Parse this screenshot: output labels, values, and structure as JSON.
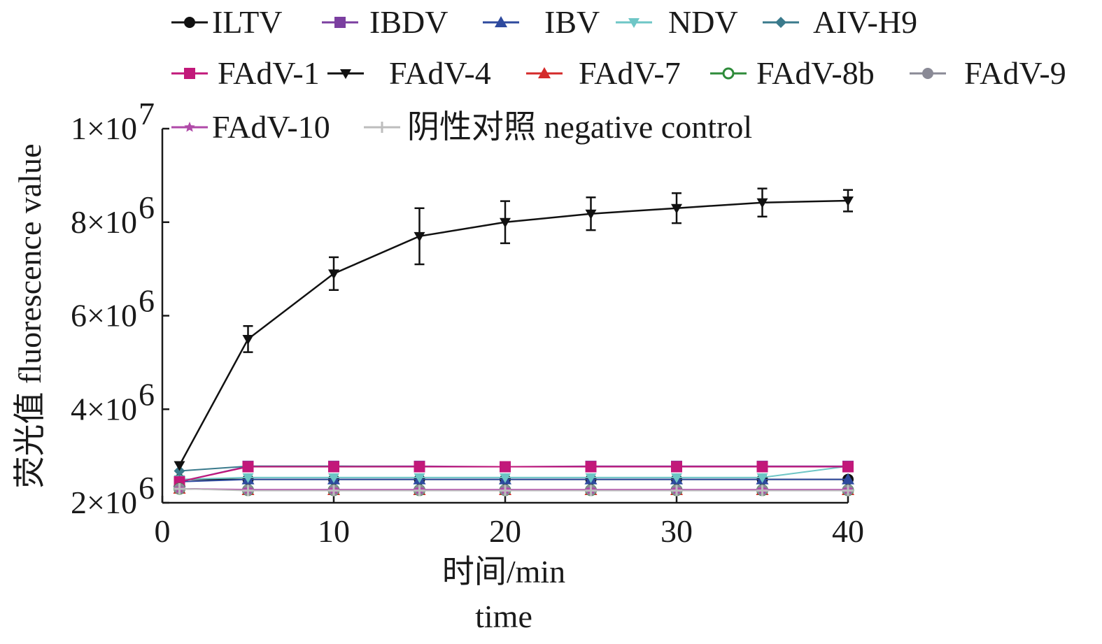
{
  "chart_data": {
    "type": "line",
    "x": [
      1,
      5,
      10,
      15,
      20,
      25,
      30,
      35,
      40
    ],
    "xlim": [
      0,
      40
    ],
    "ylim": [
      2000000,
      10000000
    ],
    "xticks": [
      {
        "value": 0,
        "label": "0"
      },
      {
        "value": 10,
        "label": "10"
      },
      {
        "value": 20,
        "label": "20"
      },
      {
        "value": 30,
        "label": "30"
      },
      {
        "value": 40,
        "label": "40"
      }
    ],
    "yticks": [
      {
        "value": 2000000,
        "mant": "2×10",
        "exp": "6"
      },
      {
        "value": 4000000,
        "mant": "4×10",
        "exp": "6"
      },
      {
        "value": 6000000,
        "mant": "6×10",
        "exp": "6"
      },
      {
        "value": 8000000,
        "mant": "8×10",
        "exp": "6"
      },
      {
        "value": 10000000,
        "mant": "1×10",
        "exp": "7"
      }
    ],
    "xlabel_line1": "时间/min",
    "xlabel_line2": "time",
    "ylabel": "荧光值 fluorescence value",
    "grid": false,
    "legend_position": "top",
    "series": [
      {
        "name": "ILTV",
        "color": "#111111",
        "marker": "circle",
        "values": [
          2500000,
          2500000,
          2500000,
          2500000,
          2500000,
          2500000,
          2500000,
          2500000,
          2500000
        ]
      },
      {
        "name": "IBDV",
        "color": "#7b3fa0",
        "marker": "square",
        "values": [
          2450000,
          2780000,
          2780000,
          2780000,
          2770000,
          2780000,
          2780000,
          2780000,
          2780000
        ]
      },
      {
        "name": "IBV",
        "color": "#2e4a9e",
        "marker": "triangle-up",
        "values": [
          2450000,
          2500000,
          2500000,
          2500000,
          2500000,
          2500000,
          2500000,
          2500000,
          2500000
        ]
      },
      {
        "name": "NDV",
        "color": "#6ec6c6",
        "marker": "triangle-down",
        "values": [
          2500000,
          2540000,
          2540000,
          2540000,
          2540000,
          2540000,
          2540000,
          2540000,
          2780000
        ]
      },
      {
        "name": "AIV-H9",
        "color": "#3a7a8c",
        "marker": "diamond",
        "values": [
          2680000,
          2780000,
          2780000,
          2770000,
          2770000,
          2770000,
          2770000,
          2770000,
          2770000
        ]
      },
      {
        "name": "FAdV-1",
        "color": "#c2187a",
        "marker": "square",
        "values": [
          2450000,
          2770000,
          2770000,
          2770000,
          2770000,
          2770000,
          2770000,
          2770000,
          2770000
        ]
      },
      {
        "name": "FAdV-4",
        "color": "#111111",
        "marker": "triangle-down",
        "values": [
          2800000,
          5500000,
          6900000,
          7700000,
          8000000,
          8180000,
          8300000,
          8420000,
          8460000
        ],
        "errors": [
          0,
          280000,
          350000,
          600000,
          450000,
          350000,
          320000,
          300000,
          230000
        ]
      },
      {
        "name": "FAdV-7",
        "color": "#d42a2a",
        "marker": "triangle-up",
        "values": [
          2300000,
          2270000,
          2270000,
          2270000,
          2270000,
          2270000,
          2270000,
          2270000,
          2270000
        ]
      },
      {
        "name": "FAdV-8b",
        "color": "#2e8b3a",
        "marker": "circle-open",
        "values": [
          2300000,
          2270000,
          2270000,
          2270000,
          2270000,
          2270000,
          2270000,
          2270000,
          2270000
        ]
      },
      {
        "name": "FAdV-9",
        "color": "#8a8a96",
        "marker": "circle",
        "values": [
          2300000,
          2270000,
          2270000,
          2270000,
          2270000,
          2270000,
          2270000,
          2270000,
          2270000
        ]
      },
      {
        "name": "FAdV-10",
        "color": "#b04aa8",
        "marker": "star",
        "values": [
          2300000,
          2280000,
          2280000,
          2280000,
          2280000,
          2280000,
          2280000,
          2280000,
          2280000
        ]
      },
      {
        "name": "阴性对照 negative control",
        "color": "#bdbdbd",
        "marker": "plus",
        "values": [
          2300000,
          2260000,
          2260000,
          2260000,
          2260000,
          2260000,
          2260000,
          2260000,
          2260000
        ]
      }
    ]
  }
}
